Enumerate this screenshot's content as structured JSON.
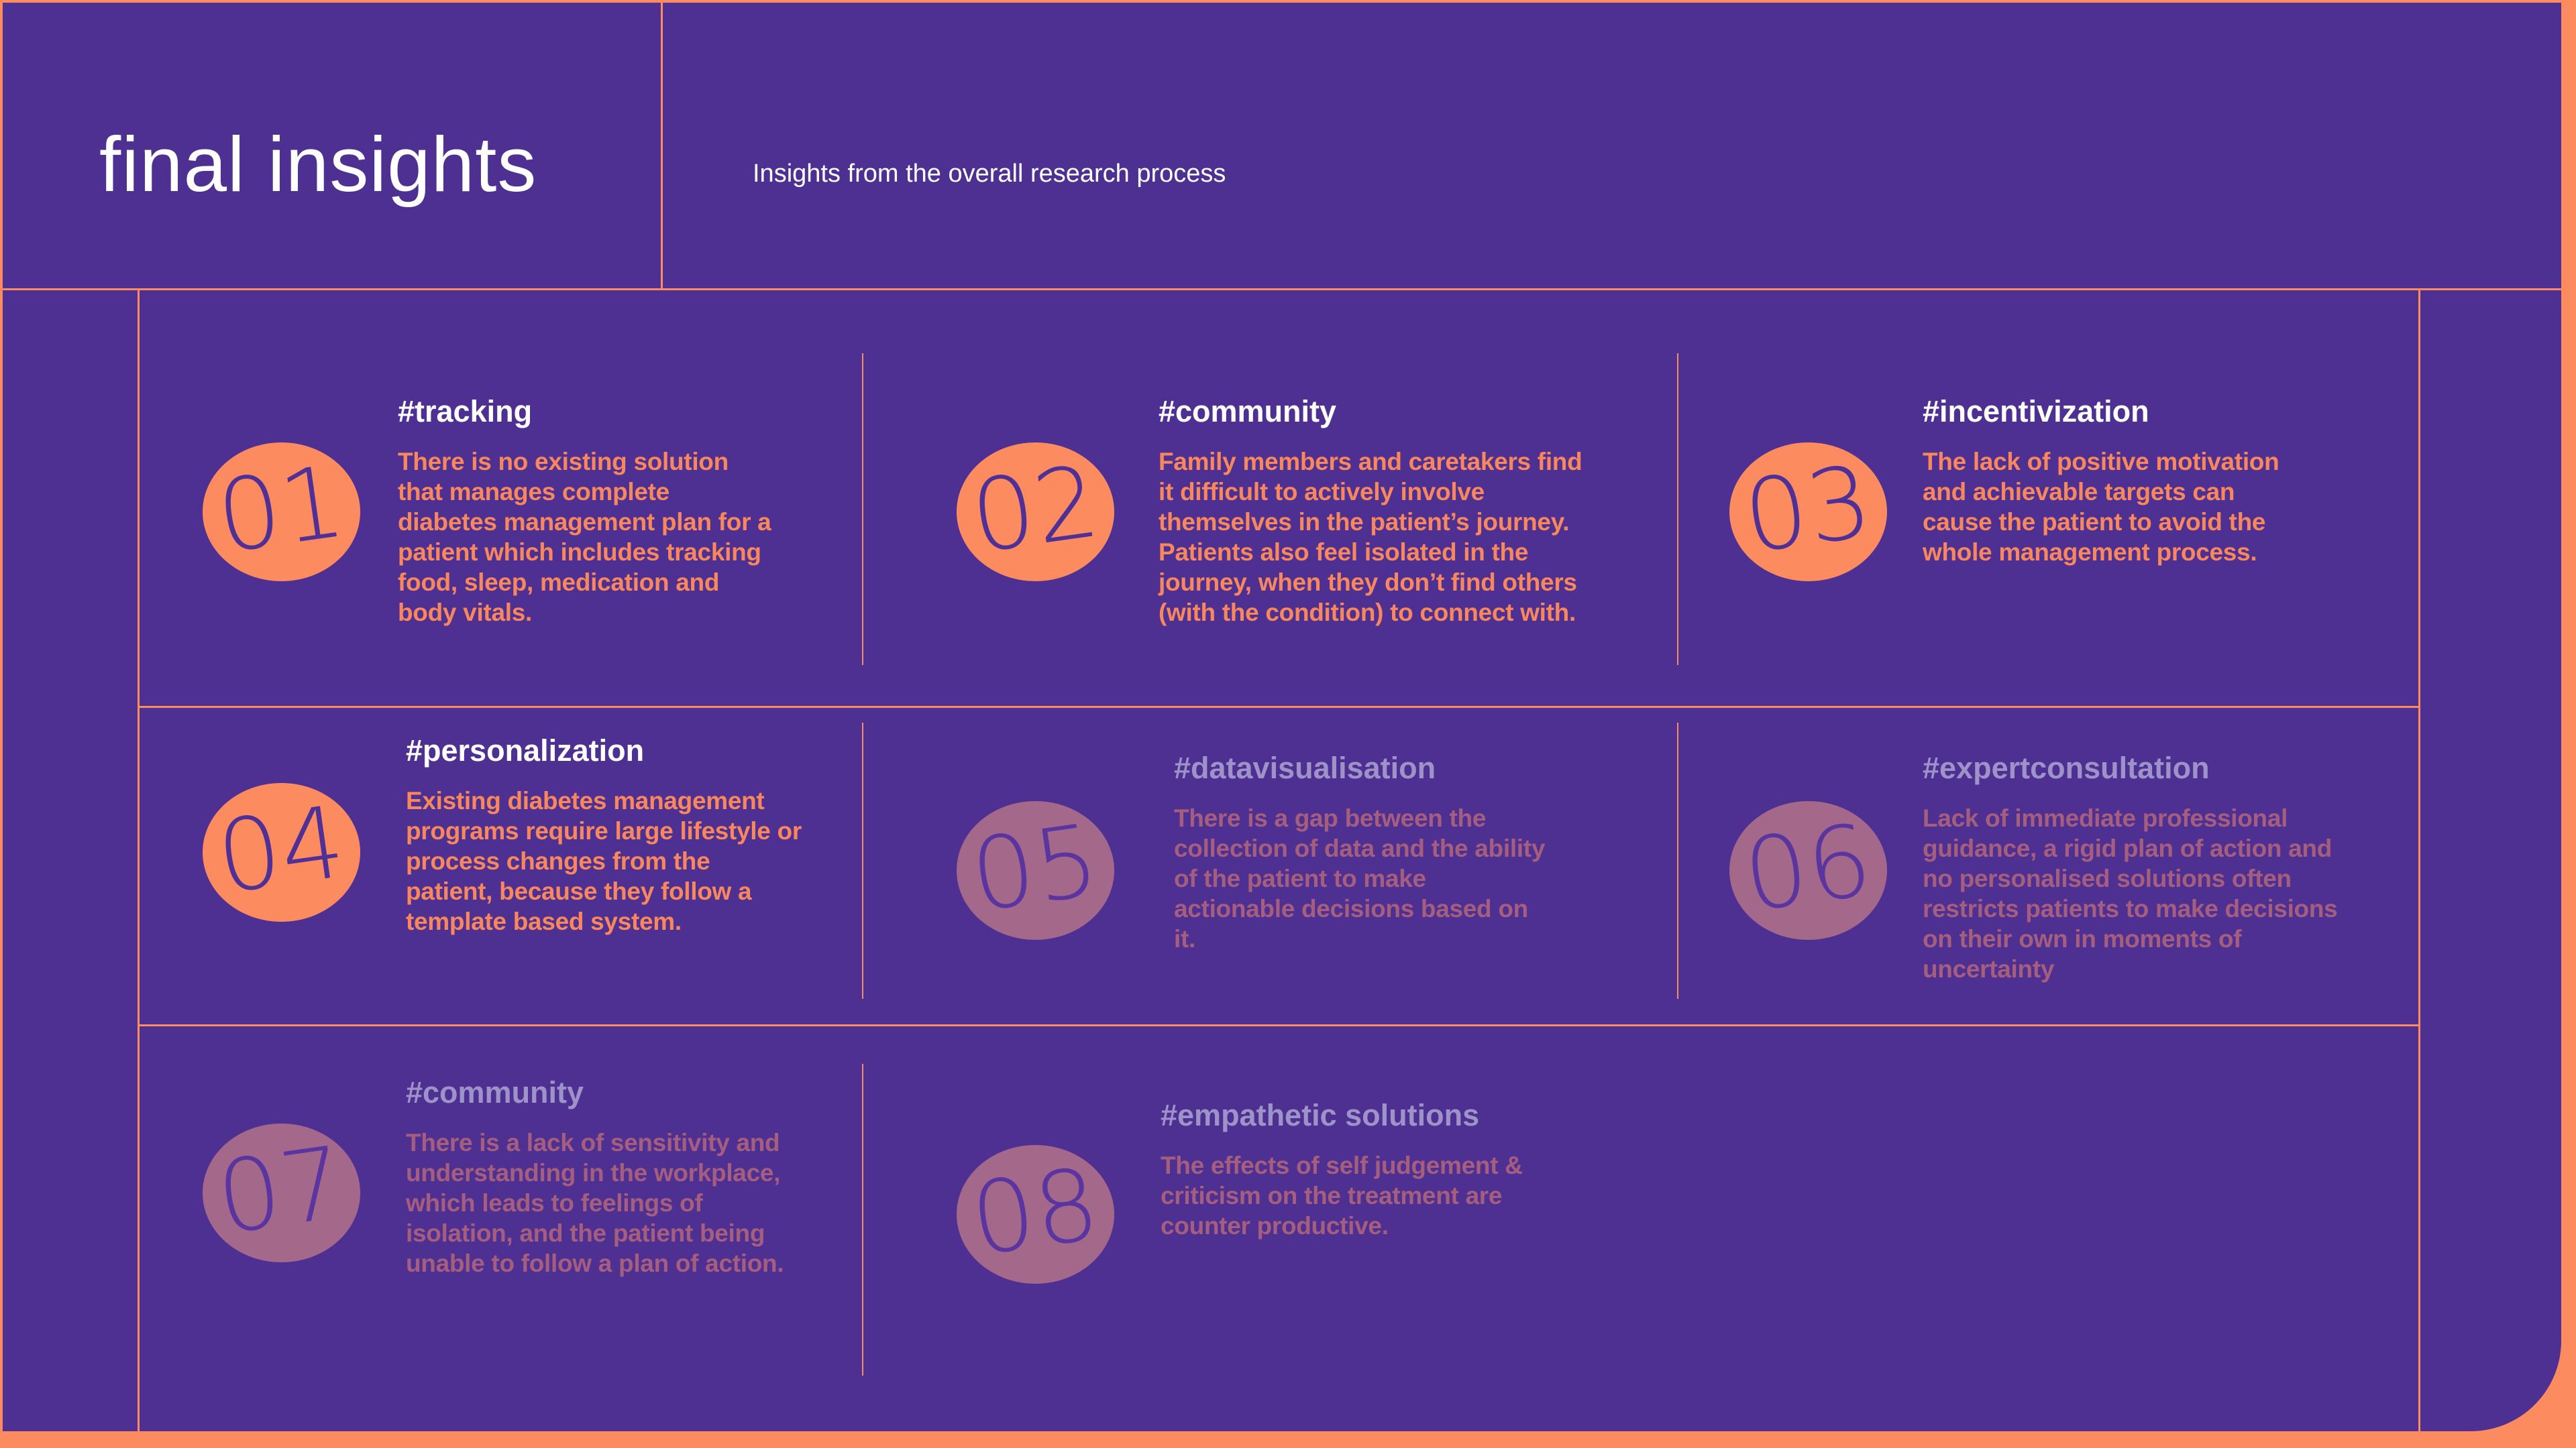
{
  "theme": {
    "orange": "#FC8B60",
    "purple": "#4E3092",
    "text_orange": "#F8875D",
    "num_purple": "#4F3096",
    "muted_circle": "#A4688A",
    "muted_num": "#5A35A0",
    "muted_tag": "#9E93C8",
    "muted_text": "#A55E7E",
    "white": "#FFFFFF"
  },
  "header": {
    "title": "final insights",
    "subtitle": "Insights from the overall research process"
  },
  "insights": [
    {
      "number": "01",
      "tag": "#tracking",
      "text": "There is no existing solution that manages complete diabetes management plan for a patient which includes tracking food, sleep, medication and body vitals.",
      "state": "active"
    },
    {
      "number": "02",
      "tag": "#community",
      "text": "Family members and caretakers find it difficult to actively involve themselves in the patient’s journey. Patients also feel isolated in the journey, when they don’t find others (with the condition) to connect with.",
      "state": "active"
    },
    {
      "number": "03",
      "tag": "#incentivization",
      "text": "The lack of positive motivation and achievable targets can cause the patient to avoid the whole management process.",
      "state": "active"
    },
    {
      "number": "04",
      "tag": "#personalization",
      "text": "Existing diabetes management programs require large lifestyle or process changes from the patient, because they follow a template based system.",
      "state": "active"
    },
    {
      "number": "05",
      "tag": "#datavisualisation",
      "text": "There is a gap between the collection of data and the ability of the patient to make actionable decisions based on it.",
      "state": "muted"
    },
    {
      "number": "06",
      "tag": "#expertconsultation",
      "text": "Lack of immediate professional guidance, a rigid plan of action and no personalised solutions often restricts patients to make decisions on their own in moments of uncertainty",
      "state": "muted"
    },
    {
      "number": "07",
      "tag": "#community",
      "text": "There is a lack of sensitivity and understanding in the workplace, which leads to feelings of isolation, and the patient being unable to follow a plan of action.",
      "state": "muted"
    },
    {
      "number": "08",
      "tag": "#empathetic solutions",
      "text": "The effects of self judgement & criticism on the treatment are counter productive.",
      "state": "muted"
    }
  ]
}
